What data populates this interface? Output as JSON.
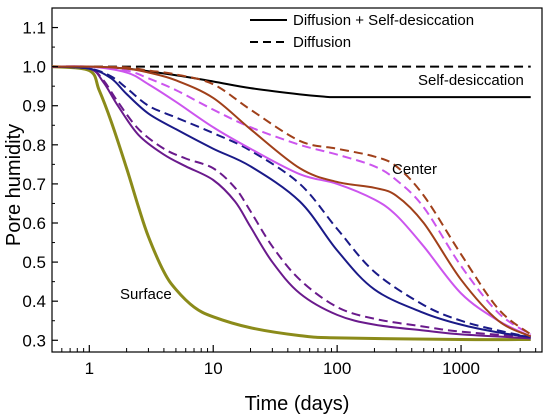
{
  "chart_data": {
    "type": "line",
    "xlabel": "Time (days)",
    "ylabel": "Pore humidity",
    "xscale": "log",
    "xlim": [
      0.5,
      4500
    ],
    "ylim": [
      0.27,
      1.15
    ],
    "x_ticks": [
      1,
      10,
      100,
      1000
    ],
    "x_tick_labels": [
      "1",
      "10",
      "100",
      "1000"
    ],
    "y_ticks": [
      0.3,
      0.4,
      0.5,
      0.6,
      0.7,
      0.8,
      0.9,
      1.0,
      1.1
    ],
    "y_tick_labels": [
      "0.3",
      "0.4",
      "0.5",
      "0.6",
      "0.7",
      "0.8",
      "0.9",
      "1.0",
      "1.1"
    ],
    "legend": {
      "position": "top-right",
      "entries": [
        {
          "label": "Diffusion + Self-desiccation",
          "style": "solid"
        },
        {
          "label": "Diffusion",
          "style": "dashed"
        }
      ]
    },
    "annotations": [
      "Self-desiccation",
      "Center",
      "Surface"
    ],
    "series": [
      {
        "color": "#000000",
        "style": "solid",
        "width": 2,
        "x": [
          0.5,
          1,
          2,
          5,
          10,
          20,
          50,
          80,
          100,
          200,
          500,
          1000,
          3650
        ],
        "y": [
          1.0,
          1.0,
          0.995,
          0.978,
          0.962,
          0.945,
          0.929,
          0.923,
          0.922,
          0.922,
          0.922,
          0.922,
          0.922
        ]
      },
      {
        "color": "#000000",
        "style": "dashed",
        "width": 2,
        "x": [
          0.5,
          3650
        ],
        "y": [
          1.0,
          1.0
        ]
      },
      {
        "color": "#8b8b1a",
        "style": "solid",
        "width": 3,
        "x": [
          0.5,
          1,
          1.2,
          1.5,
          2,
          2.5,
          3,
          4,
          5,
          7,
          10,
          20,
          50,
          100,
          1000,
          3650
        ],
        "y": [
          1.0,
          0.99,
          0.94,
          0.86,
          0.74,
          0.64,
          0.565,
          0.475,
          0.43,
          0.385,
          0.36,
          0.332,
          0.312,
          0.306,
          0.302,
          0.302
        ]
      },
      {
        "color": "#6a1a8c",
        "style": "solid",
        "width": 2,
        "x": [
          0.5,
          1,
          1.3,
          1.7,
          2.5,
          4,
          6,
          10,
          15,
          20,
          30,
          50,
          100,
          200,
          500,
          1000,
          3650
        ],
        "y": [
          1.0,
          0.995,
          0.96,
          0.9,
          0.825,
          0.775,
          0.745,
          0.71,
          0.655,
          0.59,
          0.5,
          0.42,
          0.365,
          0.34,
          0.325,
          0.315,
          0.305
        ]
      },
      {
        "color": "#6a1a8c",
        "style": "dashed",
        "width": 2,
        "x": [
          0.5,
          1,
          1.3,
          1.7,
          2.5,
          4,
          6,
          10,
          15,
          20,
          30,
          50,
          100,
          200,
          500,
          1000,
          3650
        ],
        "y": [
          1.0,
          0.995,
          0.965,
          0.91,
          0.84,
          0.79,
          0.765,
          0.74,
          0.69,
          0.63,
          0.54,
          0.455,
          0.385,
          0.355,
          0.335,
          0.322,
          0.308
        ]
      },
      {
        "color": "#1a1a88",
        "style": "solid",
        "width": 2,
        "x": [
          0.5,
          1,
          1.5,
          2,
          3,
          5,
          10,
          20,
          50,
          100,
          200,
          500,
          1000,
          2000,
          3650
        ],
        "y": [
          1.0,
          0.995,
          0.97,
          0.93,
          0.88,
          0.84,
          0.79,
          0.745,
          0.655,
          0.53,
          0.43,
          0.37,
          0.34,
          0.32,
          0.308
        ]
      },
      {
        "color": "#1a1a88",
        "style": "dashed",
        "width": 2,
        "x": [
          0.5,
          1,
          1.5,
          2,
          3,
          5,
          10,
          20,
          50,
          100,
          200,
          500,
          1000,
          2000,
          3650
        ],
        "y": [
          1.0,
          0.995,
          0.975,
          0.945,
          0.9,
          0.87,
          0.83,
          0.785,
          0.7,
          0.585,
          0.475,
          0.39,
          0.35,
          0.325,
          0.308
        ]
      },
      {
        "color": "#cc55ee",
        "style": "solid",
        "width": 2,
        "x": [
          0.5,
          1,
          2,
          3,
          5,
          10,
          20,
          50,
          100,
          200,
          300,
          500,
          1000,
          2000,
          3650
        ],
        "y": [
          1.0,
          1.0,
          0.985,
          0.955,
          0.91,
          0.845,
          0.79,
          0.725,
          0.7,
          0.66,
          0.62,
          0.54,
          0.42,
          0.35,
          0.31
        ]
      },
      {
        "color": "#cc55ee",
        "style": "dashed",
        "width": 2,
        "x": [
          0.5,
          1,
          2,
          3,
          5,
          10,
          20,
          50,
          100,
          200,
          300,
          500,
          1000,
          2000,
          3650
        ],
        "y": [
          1.0,
          1.0,
          0.99,
          0.97,
          0.94,
          0.89,
          0.845,
          0.8,
          0.775,
          0.745,
          0.71,
          0.64,
          0.49,
          0.37,
          0.315
        ]
      },
      {
        "color": "#a0401a",
        "style": "solid",
        "width": 2,
        "x": [
          0.5,
          1,
          2,
          3,
          5,
          10,
          20,
          50,
          100,
          200,
          300,
          500,
          1000,
          2000,
          3650
        ],
        "y": [
          1.0,
          1.0,
          0.995,
          0.985,
          0.965,
          0.92,
          0.84,
          0.74,
          0.705,
          0.69,
          0.67,
          0.6,
          0.455,
          0.35,
          0.31
        ]
      },
      {
        "color": "#a0401a",
        "style": "dashed",
        "width": 2,
        "x": [
          0.5,
          1,
          2,
          3,
          5,
          10,
          20,
          50,
          100,
          200,
          300,
          500,
          1000,
          2000,
          3650
        ],
        "y": [
          1.0,
          1.0,
          0.998,
          0.99,
          0.98,
          0.955,
          0.89,
          0.81,
          0.79,
          0.77,
          0.745,
          0.67,
          0.52,
          0.38,
          0.315
        ]
      }
    ]
  }
}
